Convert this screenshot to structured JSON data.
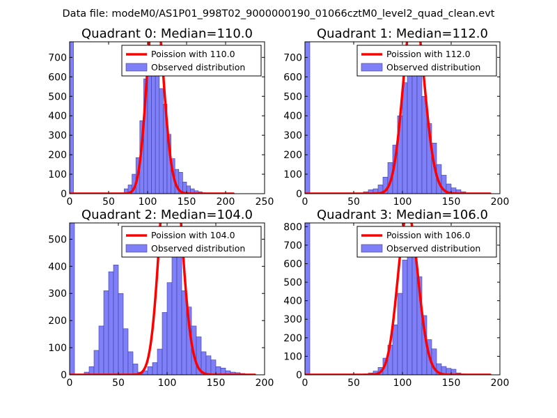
{
  "figure": {
    "suptitle": "Data file: modeM0/AS1P01_998T02_9000000190_01066cztM0_level2_quad_clean.evt"
  },
  "colors": {
    "bar_fill": "#7f7ff7",
    "bar_edge": "#3c3ca0",
    "poisson": "#ff0000",
    "axis": "#000000",
    "legend_edge": "#000000"
  },
  "chart_data": [
    {
      "type": "bar",
      "title": "Quadrant 0: Median=110.0",
      "xlim": [
        0,
        250
      ],
      "ylim": [
        0,
        780
      ],
      "xticks": [
        0,
        50,
        100,
        150,
        200,
        250
      ],
      "yticks": [
        0,
        100,
        200,
        300,
        400,
        500,
        600,
        700
      ],
      "bin_width": 5,
      "series": [
        {
          "name": "Observed distribution",
          "x": [
            0,
            70,
            75,
            80,
            85,
            90,
            95,
            100,
            105,
            110,
            115,
            120,
            125,
            130,
            135,
            140,
            145,
            150,
            155,
            160,
            165,
            170,
            175
          ],
          "values": [
            780,
            25,
            45,
            100,
            185,
            375,
            590,
            730,
            715,
            610,
            540,
            460,
            305,
            180,
            125,
            110,
            60,
            40,
            25,
            15,
            10,
            5,
            3
          ]
        },
        {
          "name": "Poission with 110.0",
          "type": "line",
          "mean": 110.0,
          "x_range": [
            0,
            210
          ]
        }
      ],
      "legend": [
        "Poission with 110.0",
        "Observed distribution"
      ],
      "legend_loc": "top-right"
    },
    {
      "type": "bar",
      "title": "Quadrant 1: Median=112.0",
      "xlim": [
        0,
        200
      ],
      "ylim": [
        0,
        780
      ],
      "xticks": [
        0,
        50,
        100,
        150,
        200
      ],
      "yticks": [
        0,
        100,
        200,
        300,
        400,
        500,
        600,
        700
      ],
      "bin_width": 5,
      "series": [
        {
          "name": "Observed distribution",
          "x": [
            0,
            60,
            65,
            70,
            75,
            80,
            85,
            90,
            95,
            100,
            105,
            110,
            115,
            120,
            125,
            130,
            135,
            140,
            145,
            150,
            155,
            160
          ],
          "values": [
            780,
            10,
            20,
            25,
            45,
            85,
            160,
            250,
            400,
            570,
            720,
            740,
            610,
            500,
            360,
            260,
            150,
            95,
            50,
            30,
            20,
            10
          ]
        },
        {
          "name": "Poission with 112.0",
          "type": "line",
          "mean": 112.0,
          "x_range": [
            0,
            190
          ]
        }
      ],
      "legend": [
        "Poission with 112.0",
        "Observed distribution"
      ],
      "legend_loc": "top-right"
    },
    {
      "type": "bar",
      "title": "Quadrant 2: Median=104.0",
      "xlim": [
        0,
        200
      ],
      "ylim": [
        0,
        560
      ],
      "xticks": [
        0,
        50,
        100,
        150,
        200
      ],
      "yticks": [
        0,
        100,
        200,
        300,
        400,
        500
      ],
      "bin_width": 5,
      "series": [
        {
          "name": "Observed distribution",
          "x": [
            0,
            15,
            20,
            25,
            30,
            35,
            40,
            45,
            50,
            55,
            60,
            65,
            70,
            75,
            80,
            85,
            90,
            95,
            100,
            105,
            110,
            115,
            120,
            125,
            130,
            135,
            140,
            145,
            150,
            155,
            160,
            165,
            170,
            175,
            180
          ],
          "values": [
            560,
            10,
            30,
            90,
            180,
            310,
            380,
            405,
            300,
            170,
            85,
            40,
            10,
            15,
            30,
            45,
            95,
            230,
            340,
            525,
            450,
            310,
            250,
            180,
            140,
            85,
            70,
            55,
            30,
            25,
            15,
            10,
            8,
            5,
            3
          ]
        },
        {
          "name": "Poission with 104.0",
          "type": "line",
          "mean": 104.0,
          "x_range": [
            0,
            190
          ]
        }
      ],
      "legend": [
        "Poission with 104.0",
        "Observed distribution"
      ],
      "legend_loc": "top-right"
    },
    {
      "type": "bar",
      "title": "Quadrant 3: Median=106.0",
      "xlim": [
        0,
        200
      ],
      "ylim": [
        0,
        820
      ],
      "xticks": [
        0,
        50,
        100,
        150,
        200
      ],
      "yticks": [
        0,
        100,
        200,
        300,
        400,
        500,
        600,
        700,
        800
      ],
      "bin_width": 5,
      "series": [
        {
          "name": "Observed distribution",
          "x": [
            0,
            60,
            65,
            70,
            75,
            80,
            85,
            90,
            95,
            100,
            105,
            110,
            115,
            120,
            125,
            130,
            135,
            140,
            145,
            150,
            155,
            160
          ],
          "values": [
            820,
            5,
            10,
            20,
            40,
            90,
            160,
            270,
            440,
            620,
            770,
            740,
            530,
            320,
            190,
            140,
            60,
            45,
            35,
            30,
            10,
            5
          ]
        },
        {
          "name": "Poission with 106.0",
          "type": "line",
          "mean": 106.0,
          "x_range": [
            0,
            190
          ]
        }
      ],
      "legend": [
        "Poission with 106.0",
        "Observed distribution"
      ],
      "legend_loc": "top-right"
    }
  ]
}
